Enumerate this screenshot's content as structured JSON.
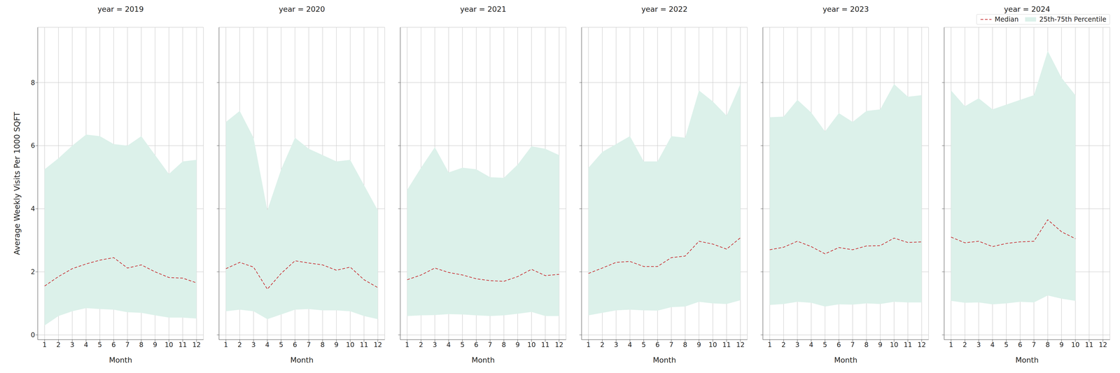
{
  "chart_data": [
    {
      "type": "line",
      "title": "year = 2019",
      "xlabel": "Month",
      "ylabel": "Average Weekly Visits Per 1000 SQFT",
      "x": [
        1,
        2,
        3,
        4,
        5,
        6,
        7,
        8,
        9,
        10,
        11,
        12
      ],
      "xlim": [
        0.5,
        12.5
      ],
      "xticks": [
        1,
        2,
        3,
        4,
        5,
        6,
        7,
        8,
        9,
        10,
        11,
        12
      ],
      "ylim": [
        -0.15,
        9.75
      ],
      "yticks": [
        0,
        2,
        4,
        6,
        8
      ],
      "grid": true,
      "series": [
        {
          "name": "Median",
          "color": "#c8373a",
          "line_style": "dashed",
          "values": [
            1.55,
            1.85,
            2.1,
            2.25,
            2.37,
            2.45,
            2.12,
            2.22,
            2.0,
            1.82,
            1.8,
            1.65
          ]
        },
        {
          "name": "25th-75th Percentile",
          "type": "band",
          "color": "#dcf1ea",
          "low": [
            0.3,
            0.6,
            0.75,
            0.85,
            0.82,
            0.8,
            0.72,
            0.7,
            0.62,
            0.55,
            0.55,
            0.52
          ],
          "high": [
            5.25,
            5.6,
            6.0,
            6.35,
            6.3,
            6.05,
            6.0,
            6.3,
            5.7,
            5.1,
            5.5,
            5.55
          ]
        }
      ]
    },
    {
      "type": "line",
      "title": "year = 2020",
      "xlabel": "Month",
      "x": [
        1,
        2,
        3,
        4,
        5,
        6,
        7,
        8,
        9,
        10,
        11,
        12
      ],
      "xlim": [
        0.5,
        12.5
      ],
      "xticks": [
        1,
        2,
        3,
        4,
        5,
        6,
        7,
        8,
        9,
        10,
        11,
        12
      ],
      "ylim": [
        -0.15,
        9.75
      ],
      "yticks": [
        0,
        2,
        4,
        6,
        8
      ],
      "grid": true,
      "tick_labels": "x",
      "series": [
        {
          "name": "Median",
          "color": "#c8373a",
          "line_style": "dashed",
          "values": [
            2.1,
            2.3,
            2.15,
            1.45,
            1.95,
            2.35,
            2.28,
            2.22,
            2.05,
            2.15,
            1.75,
            1.5
          ]
        },
        {
          "name": "25th-75th Percentile",
          "type": "band",
          "color": "#dcf1ea",
          "low": [
            0.75,
            0.8,
            0.75,
            0.5,
            0.65,
            0.8,
            0.82,
            0.78,
            0.78,
            0.75,
            0.6,
            0.5
          ],
          "high": [
            6.75,
            7.1,
            6.25,
            3.95,
            5.25,
            6.25,
            5.9,
            5.7,
            5.5,
            5.55,
            4.75,
            3.95
          ]
        }
      ]
    },
    {
      "type": "line",
      "title": "year = 2021",
      "xlabel": "Month",
      "x": [
        1,
        2,
        3,
        4,
        5,
        6,
        7,
        8,
        9,
        10,
        11,
        12
      ],
      "xlim": [
        0.5,
        12.5
      ],
      "xticks": [
        1,
        2,
        3,
        4,
        5,
        6,
        7,
        8,
        9,
        10,
        11,
        12
      ],
      "ylim": [
        -0.15,
        9.75
      ],
      "yticks": [
        0,
        2,
        4,
        6,
        8
      ],
      "grid": true,
      "tick_labels": "x",
      "series": [
        {
          "name": "Median",
          "color": "#c8373a",
          "line_style": "dashed",
          "values": [
            1.75,
            1.9,
            2.12,
            1.98,
            1.9,
            1.78,
            1.72,
            1.7,
            1.85,
            2.08,
            1.88,
            1.92
          ]
        },
        {
          "name": "25th-75th Percentile",
          "type": "band",
          "color": "#dcf1ea",
          "low": [
            0.6,
            0.62,
            0.63,
            0.66,
            0.65,
            0.62,
            0.6,
            0.62,
            0.67,
            0.73,
            0.6,
            0.6
          ],
          "high": [
            4.6,
            5.3,
            5.95,
            5.15,
            5.3,
            5.25,
            5.0,
            4.98,
            5.4,
            5.98,
            5.9,
            5.7
          ]
        }
      ]
    },
    {
      "type": "line",
      "title": "year = 2022",
      "xlabel": "Month",
      "x": [
        1,
        2,
        3,
        4,
        5,
        6,
        7,
        8,
        9,
        10,
        11,
        12
      ],
      "xlim": [
        0.5,
        12.5
      ],
      "xticks": [
        1,
        2,
        3,
        4,
        5,
        6,
        7,
        8,
        9,
        10,
        11,
        12
      ],
      "ylim": [
        -0.15,
        9.75
      ],
      "yticks": [
        0,
        2,
        4,
        6,
        8
      ],
      "grid": true,
      "tick_labels": "x",
      "series": [
        {
          "name": "Median",
          "color": "#c8373a",
          "line_style": "dashed",
          "values": [
            1.95,
            2.12,
            2.3,
            2.33,
            2.17,
            2.17,
            2.45,
            2.5,
            2.97,
            2.88,
            2.72,
            3.08
          ]
        },
        {
          "name": "25th-75th Percentile",
          "type": "band",
          "color": "#dcf1ea",
          "low": [
            0.62,
            0.7,
            0.78,
            0.8,
            0.78,
            0.77,
            0.88,
            0.9,
            1.05,
            1.0,
            0.98,
            1.1
          ],
          "high": [
            5.3,
            5.8,
            6.05,
            6.3,
            5.5,
            5.5,
            6.3,
            6.25,
            7.75,
            7.4,
            6.95,
            7.95
          ]
        }
      ]
    },
    {
      "type": "line",
      "title": "year = 2023",
      "xlabel": "Month",
      "x": [
        1,
        2,
        3,
        4,
        5,
        6,
        7,
        8,
        9,
        10,
        11,
        12
      ],
      "xlim": [
        0.5,
        12.5
      ],
      "xticks": [
        1,
        2,
        3,
        4,
        5,
        6,
        7,
        8,
        9,
        10,
        11,
        12
      ],
      "ylim": [
        -0.15,
        9.75
      ],
      "yticks": [
        0,
        2,
        4,
        6,
        8
      ],
      "grid": true,
      "tick_labels": "x",
      "series": [
        {
          "name": "Median",
          "color": "#c8373a",
          "line_style": "dashed",
          "values": [
            2.7,
            2.78,
            2.97,
            2.8,
            2.57,
            2.77,
            2.7,
            2.82,
            2.83,
            3.07,
            2.93,
            2.95
          ]
        },
        {
          "name": "25th-75th Percentile",
          "type": "band",
          "color": "#dcf1ea",
          "low": [
            0.95,
            0.98,
            1.05,
            1.02,
            0.9,
            0.97,
            0.96,
            1.0,
            0.98,
            1.05,
            1.03,
            1.03
          ],
          "high": [
            6.9,
            6.92,
            7.45,
            7.05,
            6.45,
            7.03,
            6.75,
            7.1,
            7.15,
            7.95,
            7.55,
            7.6
          ]
        }
      ]
    },
    {
      "type": "line",
      "title": "year = 2024",
      "xlabel": "Month",
      "x": [
        1,
        2,
        3,
        4,
        5,
        6,
        7,
        8,
        9,
        10
      ],
      "xlim": [
        0.5,
        12.5
      ],
      "xticks": [
        1,
        2,
        3,
        4,
        5,
        6,
        7,
        8,
        9,
        10,
        11,
        12
      ],
      "ylim": [
        -0.15,
        9.75
      ],
      "yticks": [
        0,
        2,
        4,
        6,
        8
      ],
      "grid": true,
      "tick_labels": "x",
      "legend": "upper right",
      "series": [
        {
          "name": "Median",
          "color": "#c8373a",
          "line_style": "dashed",
          "values": [
            3.1,
            2.92,
            2.97,
            2.8,
            2.9,
            2.95,
            2.97,
            3.65,
            3.27,
            3.05
          ]
        },
        {
          "name": "25th-75th Percentile",
          "type": "band",
          "color": "#dcf1ea",
          "low": [
            1.08,
            1.02,
            1.03,
            0.97,
            1.0,
            1.05,
            1.03,
            1.25,
            1.15,
            1.08
          ],
          "high": [
            7.75,
            7.25,
            7.5,
            7.15,
            7.3,
            7.45,
            7.6,
            9.0,
            8.15,
            7.6
          ]
        }
      ]
    }
  ]
}
